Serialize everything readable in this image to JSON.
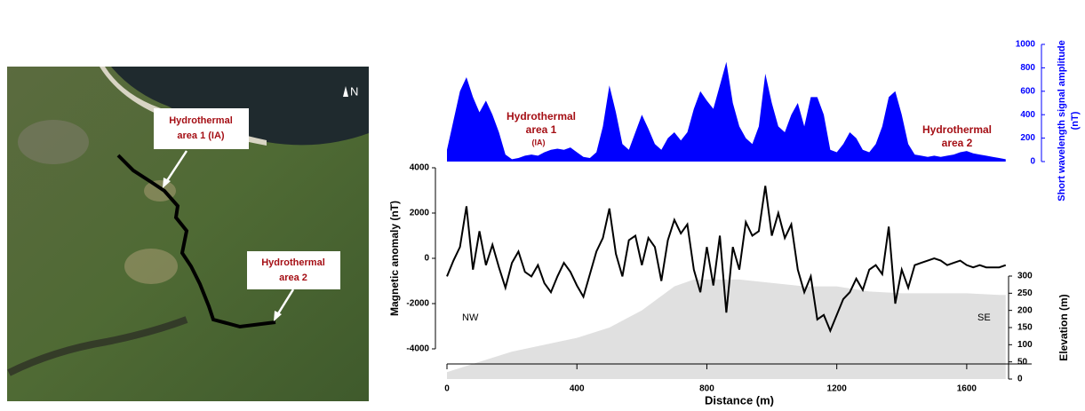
{
  "map": {
    "north": "N",
    "labels": [
      [
        "Hydrothermal",
        "area 1 (IA)"
      ],
      [
        "Hydrothermal",
        "area 2"
      ]
    ]
  },
  "chart_data": [
    {
      "type": "area",
      "color": "#0000ff",
      "ylabel": [
        "Short wavelength signal amplitude",
        "(nT)"
      ],
      "annotations": [
        "Hydrothermal",
        "area 1",
        "(IA)",
        "Hydrothermal",
        "area 2"
      ],
      "xlim": [
        0,
        1800
      ],
      "ylim": [
        0,
        1000
      ],
      "yticks": [
        0,
        200,
        400,
        600,
        800,
        1000
      ],
      "x": [
        0,
        20,
        40,
        60,
        80,
        100,
        120,
        140,
        160,
        180,
        200,
        220,
        240,
        260,
        280,
        300,
        320,
        340,
        360,
        380,
        400,
        420,
        440,
        460,
        480,
        500,
        520,
        540,
        560,
        580,
        600,
        620,
        640,
        660,
        680,
        700,
        720,
        740,
        760,
        780,
        800,
        820,
        840,
        860,
        880,
        900,
        920,
        940,
        960,
        980,
        1000,
        1020,
        1040,
        1060,
        1080,
        1100,
        1120,
        1140,
        1160,
        1180,
        1200,
        1220,
        1240,
        1260,
        1280,
        1300,
        1320,
        1340,
        1360,
        1380,
        1400,
        1420,
        1440,
        1460,
        1480,
        1500,
        1520,
        1540,
        1560,
        1580,
        1600,
        1620,
        1640,
        1660,
        1680,
        1700,
        1720
      ],
      "values": [
        100,
        350,
        600,
        720,
        550,
        420,
        520,
        400,
        250,
        60,
        20,
        30,
        50,
        60,
        50,
        80,
        100,
        110,
        100,
        120,
        80,
        40,
        30,
        80,
        300,
        650,
        420,
        150,
        100,
        250,
        400,
        280,
        150,
        100,
        200,
        250,
        180,
        250,
        450,
        600,
        520,
        450,
        650,
        850,
        500,
        300,
        200,
        150,
        300,
        750,
        500,
        300,
        250,
        400,
        500,
        300,
        550,
        550,
        400,
        100,
        80,
        150,
        250,
        200,
        100,
        80,
        150,
        300,
        550,
        600,
        400,
        150,
        60,
        50,
        40,
        50,
        40,
        50,
        60,
        80,
        90,
        70,
        60,
        50,
        40,
        30,
        20
      ]
    },
    {
      "type": "line",
      "color": "#000000",
      "xlabel": "Distance (m)",
      "ylabel": "Magnetic anomaly (nT)",
      "annotations": [
        "NW",
        "SE"
      ],
      "xlim": [
        0,
        1800
      ],
      "xticks": [
        0,
        400,
        800,
        1200,
        1600
      ],
      "ylim": [
        -4000,
        4000
      ],
      "yticks": [
        -4000,
        -2000,
        0,
        2000,
        4000
      ],
      "x": [
        0,
        20,
        40,
        60,
        80,
        100,
        120,
        140,
        160,
        180,
        200,
        220,
        240,
        260,
        280,
        300,
        320,
        340,
        360,
        380,
        400,
        420,
        440,
        460,
        480,
        500,
        520,
        540,
        560,
        580,
        600,
        620,
        640,
        660,
        680,
        700,
        720,
        740,
        760,
        780,
        800,
        820,
        840,
        860,
        880,
        900,
        920,
        940,
        960,
        980,
        1000,
        1020,
        1040,
        1060,
        1080,
        1100,
        1120,
        1140,
        1160,
        1180,
        1200,
        1220,
        1240,
        1260,
        1280,
        1300,
        1320,
        1340,
        1360,
        1380,
        1400,
        1420,
        1440,
        1460,
        1480,
        1500,
        1520,
        1540,
        1560,
        1580,
        1600,
        1620,
        1640,
        1660,
        1680,
        1700,
        1720
      ],
      "values": [
        -800,
        -100,
        500,
        2300,
        -500,
        1200,
        -300,
        600,
        -400,
        -1300,
        -200,
        300,
        -600,
        -800,
        -300,
        -1100,
        -1500,
        -800,
        -200,
        -600,
        -1200,
        -1700,
        -700,
        300,
        900,
        2200,
        200,
        -800,
        800,
        1000,
        -300,
        900,
        500,
        -1000,
        800,
        1700,
        1100,
        1500,
        -500,
        -1500,
        500,
        -1200,
        1000,
        -2400,
        500,
        -500,
        1600,
        1000,
        1200,
        3200,
        1000,
        2000,
        900,
        1500,
        -500,
        -1500,
        -800,
        -2700,
        -2500,
        -3200,
        -2500,
        -1800,
        -1500,
        -900,
        -1400,
        -500,
        -300,
        -700,
        1400,
        -2000,
        -500,
        -1300,
        -300,
        -200,
        -100,
        0,
        -100,
        -300,
        -200,
        -100,
        -300,
        -400,
        -300,
        -400,
        -400,
        -400,
        -300
      ]
    },
    {
      "type": "area",
      "color": "#e0e0e0",
      "ylabel": "Elevation (m)",
      "xlim": [
        0,
        1800
      ],
      "ylim": [
        0,
        300
      ],
      "yticks": [
        0,
        50,
        100,
        150,
        200,
        250,
        300
      ],
      "x": [
        0,
        100,
        200,
        300,
        400,
        500,
        600,
        700,
        760,
        800,
        900,
        1000,
        1100,
        1200,
        1300,
        1400,
        1500,
        1600,
        1700,
        1720
      ],
      "values": [
        20,
        50,
        80,
        100,
        120,
        150,
        200,
        270,
        290,
        290,
        290,
        280,
        270,
        270,
        255,
        250,
        250,
        250,
        245,
        245
      ]
    }
  ]
}
